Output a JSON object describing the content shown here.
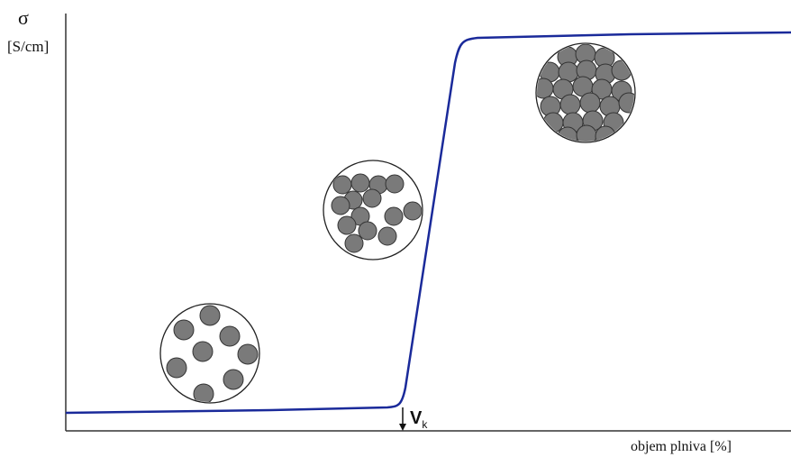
{
  "axis": {
    "y_symbol": "σ",
    "y_unit": "[S/cm]",
    "x_label": "objem plniva [%]"
  },
  "marker": {
    "label": "V",
    "subscript": "k"
  }
}
